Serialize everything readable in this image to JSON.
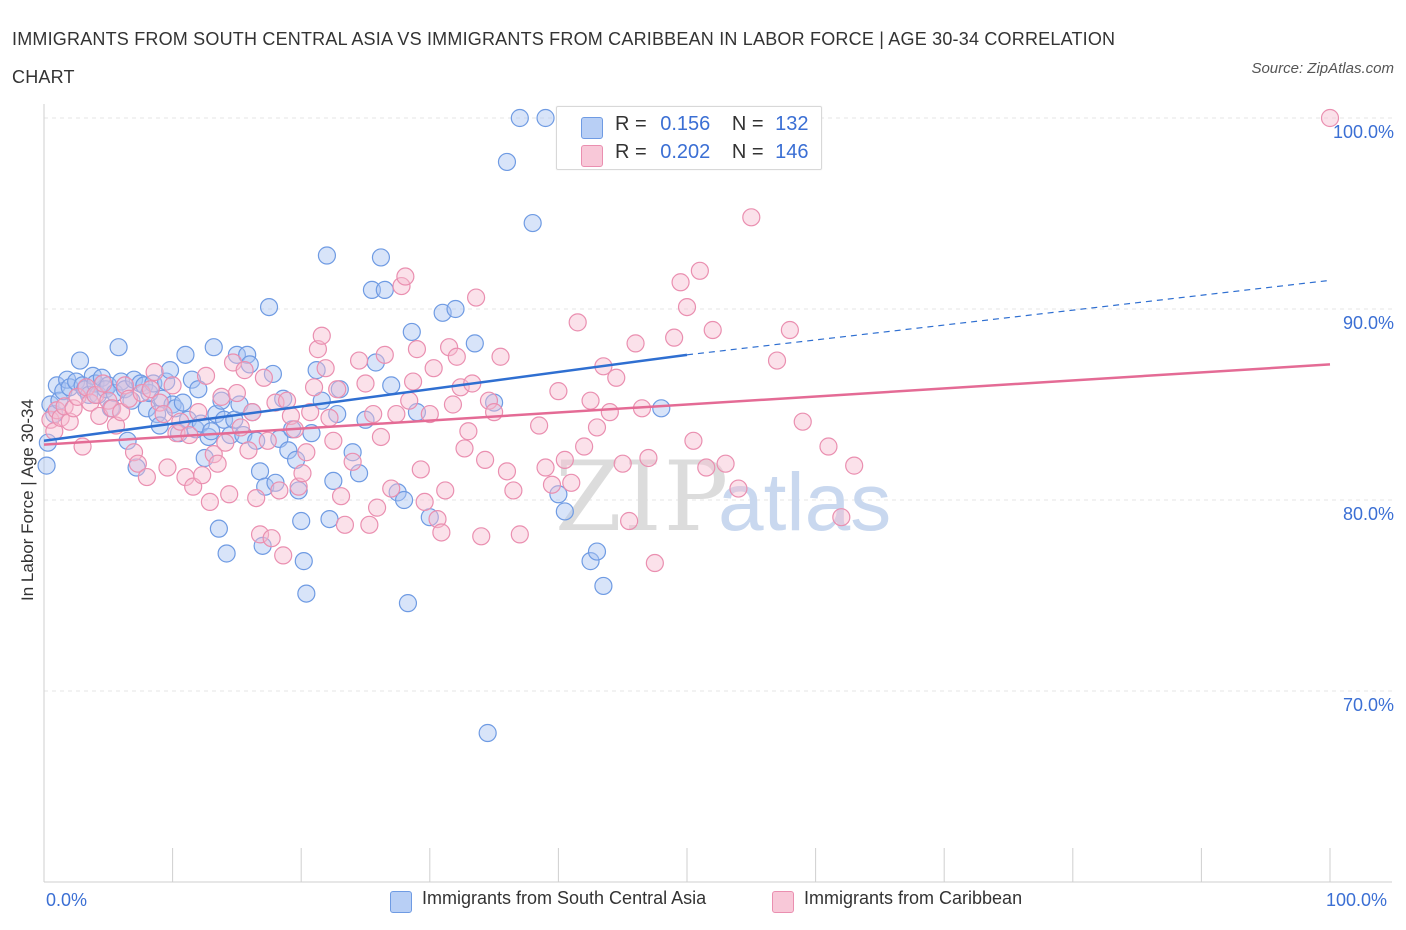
{
  "header": {
    "title": "IMMIGRANTS FROM SOUTH CENTRAL ASIA VS IMMIGRANTS FROM CARIBBEAN IN LABOR FORCE | AGE 30-34 CORRELATION CHART",
    "source": "Source: ZipAtlas.com"
  },
  "watermark": {
    "zip": "ZIP",
    "atlas": "atlas"
  },
  "legend": {
    "r_label": "R =",
    "n_label": "N =",
    "series": [
      {
        "r": "0.156",
        "n": "132"
      },
      {
        "r": "0.202",
        "n": "146"
      }
    ]
  },
  "chart_data": {
    "type": "scatter",
    "title": "IMMIGRANTS FROM SOUTH CENTRAL ASIA VS IMMIGRANTS FROM CARIBBEAN IN LABOR FORCE | AGE 30-34 CORRELATION CHART",
    "ylabel": "In Labor Force | Age 30-34",
    "xlim": [
      0,
      100
    ],
    "ylim": [
      60,
      100
    ],
    "x_tick_labels": [
      "0.0%",
      "100.0%"
    ],
    "y_ticks": [
      {
        "value": 70,
        "label": "70.0%"
      },
      {
        "value": 80,
        "label": "80.0%"
      },
      {
        "value": 90,
        "label": "90.0%"
      },
      {
        "value": 100,
        "label": "100.0%"
      }
    ],
    "grid": true,
    "legend_position": "top-center",
    "colors": {
      "blue_fill": "#a9c4f2",
      "blue_stroke": "#6f9be3",
      "blue_line": "#2f6fd1",
      "pink_fill": "#f6bcd0",
      "pink_stroke": "#ea8fb0",
      "pink_line": "#e46b95"
    },
    "series": [
      {
        "name": "Immigrants from South Central Asia",
        "color": "blue",
        "trend": {
          "x0": 0,
          "y0": 83.1,
          "x1": 50,
          "y1": 87.6,
          "dash_to_x": 100,
          "dash_to_y": 91.5
        },
        "points": [
          [
            0.2,
            81.8
          ],
          [
            0.3,
            83.0
          ],
          [
            0.5,
            85.0
          ],
          [
            0.8,
            84.5
          ],
          [
            1,
            86
          ],
          [
            1.2,
            85.2
          ],
          [
            1.5,
            85.7
          ],
          [
            1.8,
            86.3
          ],
          [
            2,
            85.9
          ],
          [
            2.5,
            86.2
          ],
          [
            2.8,
            87.3
          ],
          [
            3,
            86
          ],
          [
            3.2,
            85.8
          ],
          [
            3.5,
            85.5
          ],
          [
            3.8,
            86.5
          ],
          [
            4,
            86.1
          ],
          [
            4.2,
            85.5
          ],
          [
            4.5,
            86.4
          ],
          [
            4.8,
            85.8
          ],
          [
            5,
            86
          ],
          [
            5.2,
            84.8
          ],
          [
            5.5,
            85.6
          ],
          [
            5.8,
            88
          ],
          [
            6,
            86.2
          ],
          [
            6.3,
            85.8
          ],
          [
            6.5,
            83.1
          ],
          [
            6.8,
            85.2
          ],
          [
            7,
            86.3
          ],
          [
            7.2,
            81.7
          ],
          [
            7.5,
            86.1
          ],
          [
            7.8,
            86
          ],
          [
            8,
            84.8
          ],
          [
            8.2,
            85.6
          ],
          [
            8.5,
            86.1
          ],
          [
            8.8,
            84.5
          ],
          [
            9,
            83.9
          ],
          [
            9.2,
            85.3
          ],
          [
            9.5,
            86.2
          ],
          [
            9.8,
            86.8
          ],
          [
            10,
            85
          ],
          [
            10.2,
            84.8
          ],
          [
            10.5,
            83.5
          ],
          [
            10.8,
            85.1
          ],
          [
            11,
            87.6
          ],
          [
            11.2,
            84.2
          ],
          [
            11.5,
            86.3
          ],
          [
            11.8,
            83.7
          ],
          [
            12,
            85.8
          ],
          [
            12.2,
            84
          ],
          [
            12.5,
            82.2
          ],
          [
            12.8,
            83.3
          ],
          [
            13,
            83.6
          ],
          [
            13.2,
            88
          ],
          [
            13.4,
            84.5
          ],
          [
            13.6,
            78.5
          ],
          [
            13.8,
            85.2
          ],
          [
            14,
            84.2
          ],
          [
            14.2,
            77.2
          ],
          [
            14.5,
            83.4
          ],
          [
            14.8,
            84.2
          ],
          [
            15,
            87.6
          ],
          [
            15.2,
            85
          ],
          [
            15.5,
            83.4
          ],
          [
            15.8,
            87.6
          ],
          [
            16,
            87.1
          ],
          [
            16.2,
            84.6
          ],
          [
            16.5,
            83.1
          ],
          [
            16.8,
            81.5
          ],
          [
            17,
            77.6
          ],
          [
            17.2,
            80.7
          ],
          [
            17.5,
            90.1
          ],
          [
            17.8,
            86.6
          ],
          [
            18,
            80.9
          ],
          [
            18.3,
            83.2
          ],
          [
            18.6,
            85.3
          ],
          [
            19,
            82.6
          ],
          [
            19.3,
            83.7
          ],
          [
            19.6,
            82.1
          ],
          [
            19.8,
            80.5
          ],
          [
            20,
            78.9
          ],
          [
            20.2,
            76.8
          ],
          [
            20.4,
            75.1
          ],
          [
            20.8,
            83.5
          ],
          [
            21.2,
            86.8
          ],
          [
            21.6,
            85.2
          ],
          [
            22,
            92.8
          ],
          [
            22.2,
            79
          ],
          [
            22.5,
            81
          ],
          [
            22.8,
            84.5
          ],
          [
            23,
            85.8
          ],
          [
            24,
            82.5
          ],
          [
            24.5,
            81.4
          ],
          [
            25,
            84.2
          ],
          [
            25.5,
            91
          ],
          [
            25.8,
            87.2
          ],
          [
            26.2,
            92.7
          ],
          [
            26.5,
            91
          ],
          [
            27,
            86
          ],
          [
            27.5,
            80.4
          ],
          [
            28,
            80
          ],
          [
            28.3,
            74.6
          ],
          [
            28.6,
            88.8
          ],
          [
            29,
            84.6
          ],
          [
            30,
            79.1
          ],
          [
            31,
            89.8
          ],
          [
            32,
            90
          ],
          [
            33.5,
            88.2
          ],
          [
            34.5,
            67.8
          ],
          [
            35,
            85.1
          ],
          [
            36,
            97.7
          ],
          [
            37,
            100
          ],
          [
            38,
            94.5
          ],
          [
            39,
            100
          ],
          [
            40,
            80.3
          ],
          [
            40.5,
            79.4
          ],
          [
            41,
            100
          ],
          [
            42,
            100
          ],
          [
            42.5,
            76.8
          ],
          [
            43,
            77.3
          ],
          [
            43.5,
            75.5
          ],
          [
            44,
            100
          ],
          [
            47,
            100
          ],
          [
            48,
            84.8
          ]
        ]
      },
      {
        "name": "Immigrants from Caribbean",
        "color": "pink",
        "trend": {
          "x0": 0,
          "y0": 82.9,
          "x1": 100,
          "y1": 87.1
        },
        "points": [
          [
            0.5,
            84.2
          ],
          [
            0.8,
            83.6
          ],
          [
            1,
            84.7
          ],
          [
            1.3,
            84.3
          ],
          [
            1.6,
            84.9
          ],
          [
            2,
            84.1
          ],
          [
            2.3,
            84.8
          ],
          [
            2.6,
            85.4
          ],
          [
            3,
            82.8
          ],
          [
            3.3,
            85.9
          ],
          [
            3.6,
            85.1
          ],
          [
            4,
            85.5
          ],
          [
            4.3,
            84.4
          ],
          [
            4.6,
            86.1
          ],
          [
            5,
            85.2
          ],
          [
            5.3,
            84.8
          ],
          [
            5.6,
            83.9
          ],
          [
            6,
            84.6
          ],
          [
            6.3,
            86
          ],
          [
            6.6,
            85.3
          ],
          [
            7,
            82.5
          ],
          [
            7.3,
            81.9
          ],
          [
            7.6,
            85.6
          ],
          [
            8,
            81.2
          ],
          [
            8.3,
            85.8
          ],
          [
            8.6,
            86.7
          ],
          [
            9,
            85.1
          ],
          [
            9.3,
            84.5
          ],
          [
            9.6,
            81.7
          ],
          [
            10,
            86
          ],
          [
            10.3,
            83.5
          ],
          [
            10.6,
            84.1
          ],
          [
            11,
            81.2
          ],
          [
            11.3,
            83.4
          ],
          [
            11.6,
            80.7
          ],
          [
            12,
            84.6
          ],
          [
            12.3,
            81.3
          ],
          [
            12.6,
            86.5
          ],
          [
            12.9,
            79.9
          ],
          [
            13.2,
            82.4
          ],
          [
            13.5,
            81.9
          ],
          [
            13.8,
            85.4
          ],
          [
            14.1,
            83
          ],
          [
            14.4,
            80.3
          ],
          [
            14.7,
            87.2
          ],
          [
            15,
            85.6
          ],
          [
            15.3,
            83.8
          ],
          [
            15.6,
            86.8
          ],
          [
            15.9,
            82.6
          ],
          [
            16.2,
            84.6
          ],
          [
            16.5,
            80.1
          ],
          [
            16.8,
            78.2
          ],
          [
            17.1,
            86.4
          ],
          [
            17.4,
            83.1
          ],
          [
            17.7,
            78
          ],
          [
            18,
            85.1
          ],
          [
            18.3,
            80.5
          ],
          [
            18.6,
            77.1
          ],
          [
            18.9,
            85.2
          ],
          [
            19.2,
            84.4
          ],
          [
            19.5,
            83.7
          ],
          [
            19.8,
            80.7
          ],
          [
            20.1,
            81.4
          ],
          [
            20.4,
            82.5
          ],
          [
            20.7,
            84.6
          ],
          [
            21,
            85.9
          ],
          [
            21.3,
            87.9
          ],
          [
            21.6,
            88.6
          ],
          [
            21.9,
            86.9
          ],
          [
            22.2,
            84.3
          ],
          [
            22.5,
            83.1
          ],
          [
            22.8,
            85.8
          ],
          [
            23.1,
            80.2
          ],
          [
            23.4,
            78.7
          ],
          [
            24,
            82
          ],
          [
            24.5,
            87.3
          ],
          [
            25,
            86.1
          ],
          [
            25.3,
            78.7
          ],
          [
            25.6,
            84.5
          ],
          [
            25.9,
            79.6
          ],
          [
            26.2,
            83.3
          ],
          [
            26.5,
            87.6
          ],
          [
            27,
            80.6
          ],
          [
            27.4,
            84.5
          ],
          [
            27.8,
            91.2
          ],
          [
            28.1,
            91.7
          ],
          [
            28.4,
            85.2
          ],
          [
            28.7,
            86.2
          ],
          [
            29,
            87.9
          ],
          [
            29.3,
            81.6
          ],
          [
            29.6,
            79.9
          ],
          [
            30,
            84.5
          ],
          [
            30.3,
            86.9
          ],
          [
            30.6,
            79
          ],
          [
            30.9,
            78.3
          ],
          [
            31.2,
            80.5
          ],
          [
            31.5,
            88
          ],
          [
            31.8,
            85
          ],
          [
            32.1,
            87.5
          ],
          [
            32.4,
            85.9
          ],
          [
            32.7,
            82.7
          ],
          [
            33,
            83.6
          ],
          [
            33.3,
            86.1
          ],
          [
            33.6,
            90.6
          ],
          [
            34,
            78.1
          ],
          [
            34.3,
            82.1
          ],
          [
            34.6,
            85.2
          ],
          [
            35,
            84.6
          ],
          [
            35.5,
            87.5
          ],
          [
            36,
            81.5
          ],
          [
            36.5,
            80.5
          ],
          [
            37,
            78.2
          ],
          [
            38.5,
            83.9
          ],
          [
            39,
            81.7
          ],
          [
            39.5,
            80.8
          ],
          [
            40,
            85.7
          ],
          [
            40.5,
            82.1
          ],
          [
            41,
            80.9
          ],
          [
            41.5,
            89.3
          ],
          [
            42,
            82.8
          ],
          [
            42.5,
            85.2
          ],
          [
            43,
            83.8
          ],
          [
            43.5,
            87
          ],
          [
            44,
            84.6
          ],
          [
            44.5,
            86.4
          ],
          [
            45,
            81.9
          ],
          [
            45.5,
            78.9
          ],
          [
            46,
            88.2
          ],
          [
            46.5,
            84.8
          ],
          [
            47,
            82.2
          ],
          [
            47.5,
            76.7
          ],
          [
            49,
            88.5
          ],
          [
            49.5,
            91.4
          ],
          [
            50,
            90.1
          ],
          [
            50.5,
            83.1
          ],
          [
            51,
            92
          ],
          [
            51.5,
            81.7
          ],
          [
            52,
            88.9
          ],
          [
            53,
            81.9
          ],
          [
            54,
            80.6
          ],
          [
            55,
            94.8
          ],
          [
            57,
            87.3
          ],
          [
            58,
            88.9
          ],
          [
            59,
            84.1
          ],
          [
            61,
            82.8
          ],
          [
            62,
            79.1
          ],
          [
            63,
            81.8
          ],
          [
            100,
            100
          ]
        ]
      }
    ]
  },
  "bottom_legend": [
    {
      "label": "Immigrants from South Central Asia"
    },
    {
      "label": "Immigrants from Caribbean"
    }
  ]
}
